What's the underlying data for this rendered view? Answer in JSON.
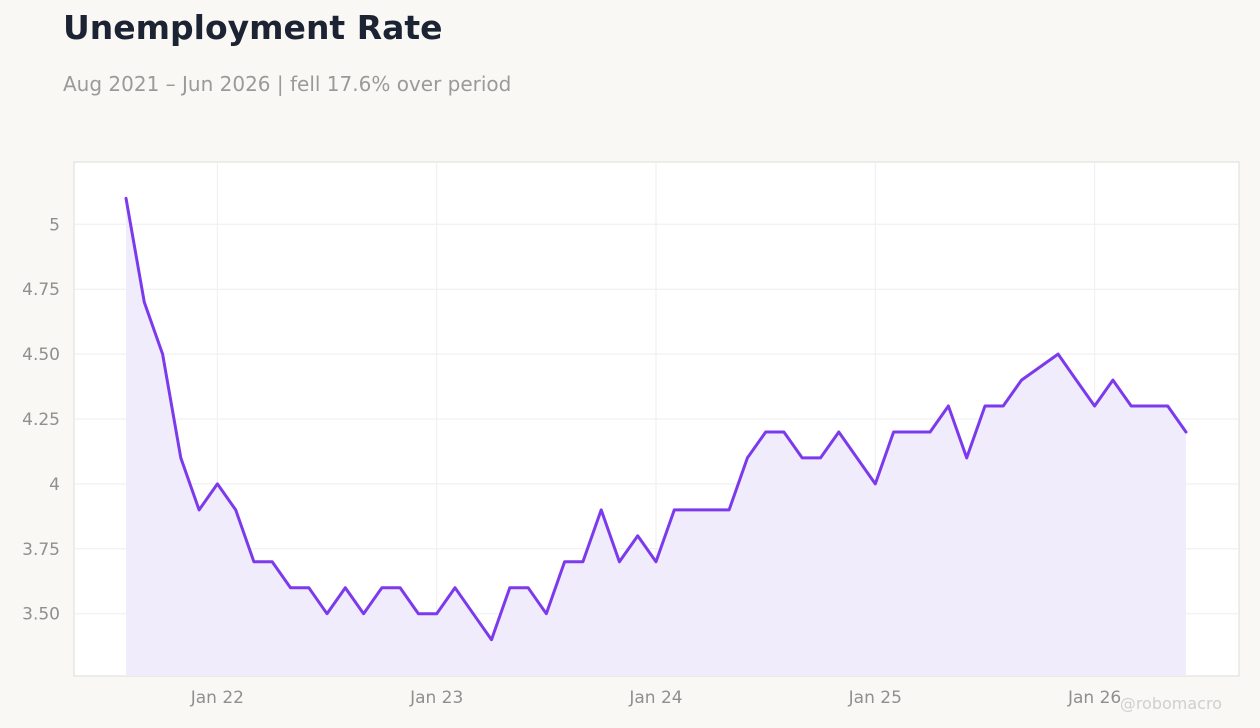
{
  "header": {
    "title": "Unemployment Rate",
    "subtitle": "Aug 2021 – Jun 2026 | fell 17.6% over period"
  },
  "watermark": "@robomacro",
  "colors": {
    "line": "#7c3aed",
    "fill": "#f1ecfb",
    "grid": "#eeeeee",
    "axis_text": "#8f8f8f"
  },
  "chart_data": {
    "type": "area",
    "title": "Unemployment Rate",
    "subtitle": "Aug 2021 – Jun 2026 | fell 17.6% over period",
    "xlabel": "",
    "ylabel": "",
    "grid": true,
    "x_start": "2021-08",
    "x_end": "2026-06",
    "x_ticks": [
      {
        "date": "2022-01",
        "label": "Jan 22"
      },
      {
        "date": "2023-01",
        "label": "Jan 23"
      },
      {
        "date": "2024-01",
        "label": "Jan 24"
      },
      {
        "date": "2025-01",
        "label": "Jan 25"
      },
      {
        "date": "2026-01",
        "label": "Jan 26"
      }
    ],
    "ylim": [
      3.26,
      5.24
    ],
    "y_ticks": [
      {
        "value": 3.5,
        "label": "3.50"
      },
      {
        "value": 3.75,
        "label": "3.75"
      },
      {
        "value": 4.0,
        "label": "4"
      },
      {
        "value": 4.25,
        "label": "4.25"
      },
      {
        "value": 4.5,
        "label": "4.50"
      },
      {
        "value": 4.75,
        "label": "4.75"
      },
      {
        "value": 5.0,
        "label": "5"
      }
    ],
    "series": [
      {
        "x": [
          "2021-08",
          "2021-09",
          "2021-10",
          "2021-11",
          "2021-12",
          "2022-01",
          "2022-02",
          "2022-03",
          "2022-04",
          "2022-05",
          "2022-06",
          "2022-07",
          "2022-08",
          "2022-09",
          "2022-10",
          "2022-11",
          "2022-12",
          "2023-01",
          "2023-02",
          "2023-03",
          "2023-04",
          "2023-05",
          "2023-06",
          "2023-07",
          "2023-08",
          "2023-09",
          "2023-10",
          "2023-11",
          "2023-12",
          "2024-01",
          "2024-02",
          "2024-03",
          "2024-04",
          "2024-05",
          "2024-06",
          "2024-07",
          "2024-08",
          "2024-09",
          "2024-10",
          "2024-11",
          "2024-12",
          "2025-01",
          "2025-02",
          "2025-03",
          "2025-04",
          "2025-05",
          "2025-06",
          "2025-07",
          "2025-08",
          "2025-09",
          "2025-10",
          "2025-11",
          "2025-12",
          "2026-01",
          "2026-02",
          "2026-03",
          "2026-04",
          "2026-05",
          "2026-06"
        ],
        "values": [
          5.1,
          4.7,
          4.5,
          4.1,
          3.9,
          4.0,
          3.9,
          3.7,
          3.7,
          3.6,
          3.6,
          3.5,
          3.6,
          3.5,
          3.6,
          3.6,
          3.5,
          3.5,
          3.6,
          3.5,
          3.4,
          3.6,
          3.6,
          3.5,
          3.7,
          3.7,
          3.9,
          3.7,
          3.8,
          3.7,
          3.9,
          3.9,
          3.9,
          3.9,
          4.1,
          4.2,
          4.2,
          4.1,
          4.1,
          4.2,
          4.1,
          4.0,
          4.2,
          4.2,
          4.2,
          4.3,
          4.1,
          4.3,
          4.3,
          4.4,
          4.45,
          4.5,
          4.4,
          4.3,
          4.4,
          4.3,
          4.3,
          4.3,
          4.2
        ]
      }
    ]
  }
}
